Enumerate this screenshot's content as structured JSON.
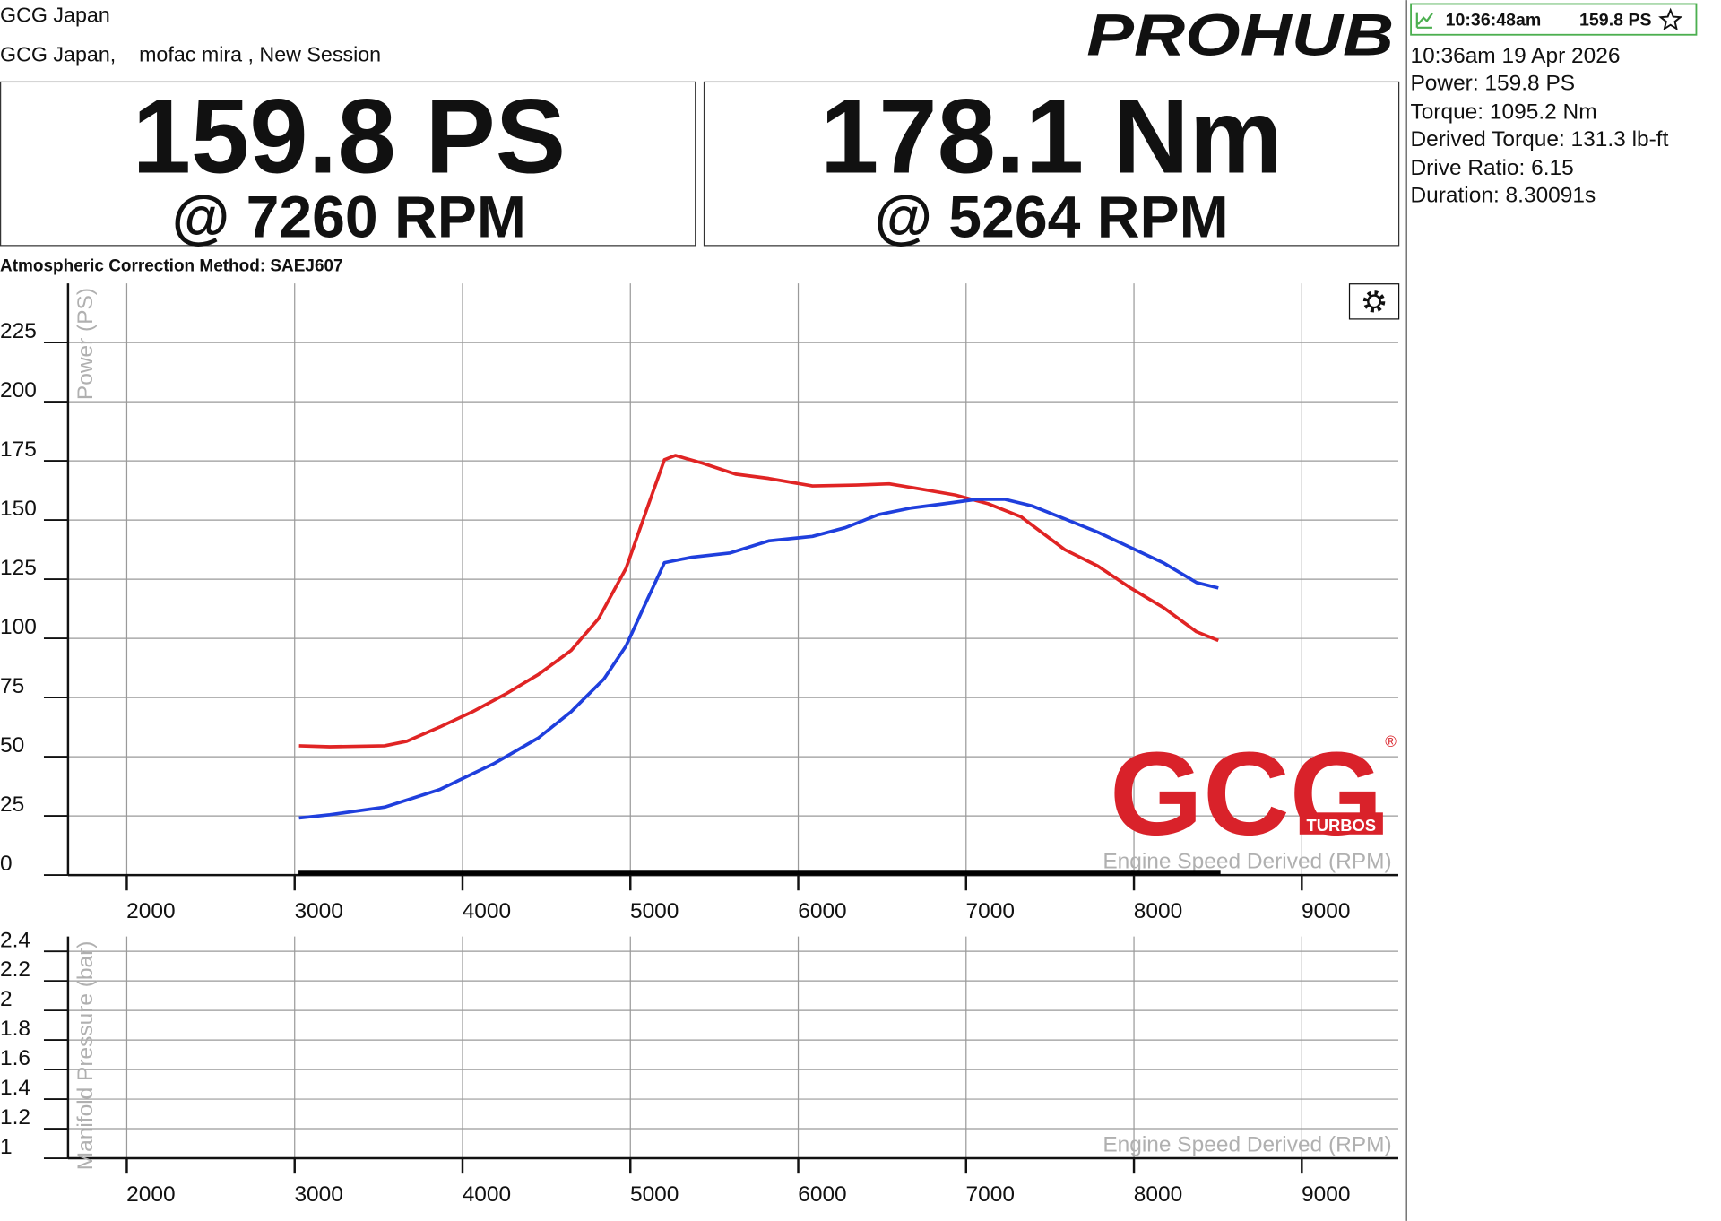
{
  "header": {
    "account": "GCG Japan",
    "session": "GCG Japan,    mofac mira , New Session",
    "logo": "PROHUB"
  },
  "stats": [
    {
      "peak": "159.8 PS",
      "rpm": "@ 7260 RPM"
    },
    {
      "peak": "178.1 Nm",
      "rpm": "@ 5264 RPM"
    }
  ],
  "correction": "Atmospheric Correction Method: SAEJ607",
  "sidebar": {
    "run_time": "10:36:48am",
    "run_power": "159.8 PS",
    "lines": [
      "10:36am 19 Apr 2026",
      "Power: 159.8 PS",
      "Torque: 1095.2 Nm",
      "Derived Torque: 131.3 lb-ft",
      "Drive Ratio: 6.15",
      "Duration: 8.30091s"
    ]
  },
  "watermark": {
    "brand": "GCG",
    "sub": "TURBOS",
    "mark": "®"
  },
  "chart_data": [
    {
      "type": "line",
      "x_label": "Engine Speed Derived (RPM)",
      "y_label": "Power (PS)",
      "xlim": [
        1650,
        9575
      ],
      "xticks": [
        2000,
        3000,
        4000,
        5000,
        6000,
        7000,
        8000,
        9000
      ],
      "ylim": [
        0,
        250
      ],
      "yticks": [
        0,
        25,
        50,
        75,
        100,
        125,
        150,
        175,
        200,
        225
      ],
      "grid": true,
      "series": [
        {
          "color": "#e02424",
          "x": [
            3026,
            3209,
            3536,
            3667,
            3863,
            4059,
            4255,
            4451,
            4647,
            4810,
            4974,
            5105,
            5203,
            5268,
            5431,
            5627,
            5824,
            6085,
            6346,
            6542,
            6739,
            6935,
            7131,
            7327,
            7588,
            7784,
            7980,
            8176,
            8373,
            8503
          ],
          "values": [
            54.6,
            54.2,
            54.6,
            56.5,
            62.5,
            69,
            76.4,
            84.7,
            94.9,
            108.3,
            129.6,
            156,
            175.5,
            177.3,
            174,
            169.4,
            167.6,
            164.4,
            164.8,
            165.3,
            163,
            160.6,
            156.9,
            151.4,
            137.5,
            130.6,
            121.3,
            113,
            102.8,
            99.1
          ]
        },
        {
          "color": "#1f3fdd",
          "x": [
            3026,
            3209,
            3536,
            3863,
            4190,
            4451,
            4647,
            4843,
            4974,
            5072,
            5203,
            5366,
            5595,
            5824,
            6085,
            6281,
            6477,
            6673,
            6869,
            7065,
            7229,
            7392,
            7588,
            7784,
            7980,
            8176,
            8373,
            8503
          ],
          "values": [
            24.1,
            25.5,
            28.7,
            36.1,
            47.2,
            57.9,
            69,
            82.9,
            96.8,
            112,
            132,
            134.3,
            136.1,
            141.2,
            143.1,
            146.8,
            152.3,
            155.1,
            156.9,
            158.8,
            158.8,
            156,
            150.5,
            144.9,
            138.4,
            131.9,
            123.6,
            121.3
          ]
        }
      ]
    },
    {
      "type": "line",
      "x_label": "Engine Speed Derived (RPM)",
      "y_label": "Manifold Pressure (bar)",
      "xlim": [
        1650,
        9575
      ],
      "xticks": [
        2000,
        3000,
        4000,
        5000,
        6000,
        7000,
        8000,
        9000
      ],
      "ylim": [
        1,
        2.5
      ],
      "yticks": [
        1,
        1.2,
        1.4,
        1.6,
        1.8,
        2,
        2.2,
        2.4
      ],
      "grid": true,
      "series": []
    }
  ]
}
